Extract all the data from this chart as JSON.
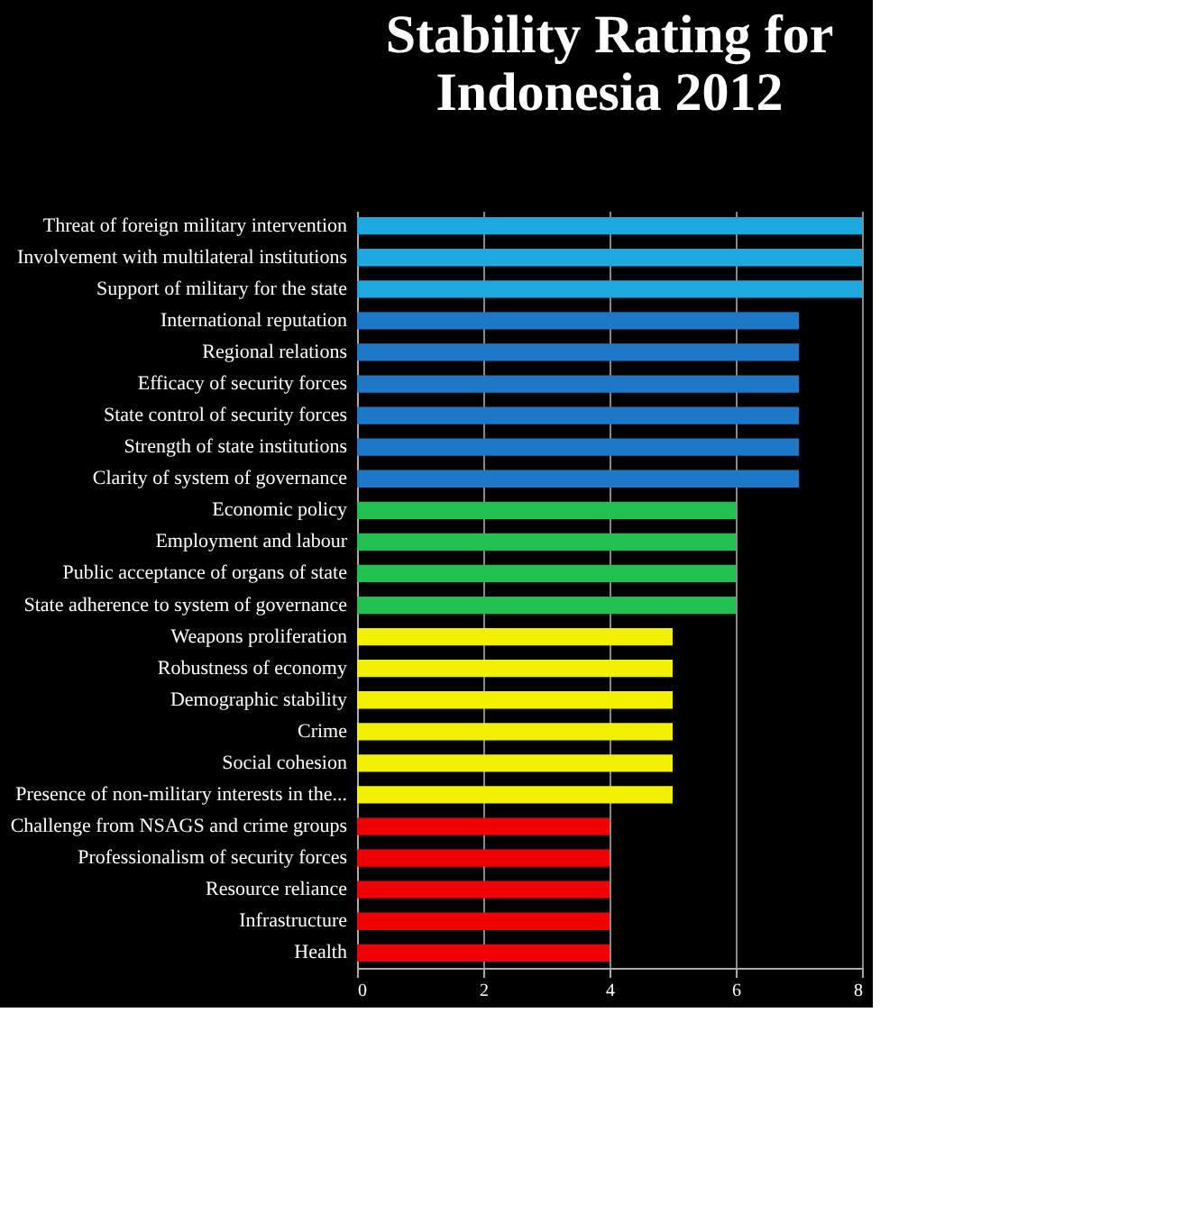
{
  "chart_data": {
    "type": "bar",
    "orientation": "horizontal",
    "title": "Stability Rating for Indonesia 2012",
    "categories": [
      "Threat of foreign military intervention",
      "Involvement with multilateral institutions",
      "Support of military for the state",
      "International reputation",
      "Regional relations",
      "Efficacy of security forces",
      "State control of security forces",
      "Strength of state institutions",
      "Clarity of system of governance",
      "Economic policy",
      "Employment and labour",
      "Public acceptance of organs of state",
      "State adherence to system of governance",
      "Weapons proliferation",
      "Robustness of economy",
      "Demographic stability",
      "Crime",
      "Social cohesion",
      "Presence of non-military interests in the...",
      "Challenge from NSAGS and crime groups",
      "Professionalism of security forces",
      "Resource reliance",
      "Infrastructure",
      "Health"
    ],
    "values": [
      8,
      8,
      8,
      7,
      7,
      7,
      7,
      7,
      7,
      6,
      6,
      6,
      6,
      5,
      5,
      5,
      5,
      5,
      5,
      4,
      4,
      4,
      4,
      4
    ],
    "colors": [
      "#1ea8e0",
      "#1ea8e0",
      "#1ea8e0",
      "#1e78c8",
      "#1e78c8",
      "#1e78c8",
      "#1e78c8",
      "#1e78c8",
      "#1e78c8",
      "#22c050",
      "#22c050",
      "#22c050",
      "#22c050",
      "#f0f000",
      "#f0f000",
      "#f0f000",
      "#f0f000",
      "#f0f000",
      "#f0f000",
      "#f00000",
      "#f00000",
      "#f00000",
      "#f00000",
      "#f00000"
    ],
    "xlim": [
      0,
      8
    ],
    "xticks": [
      0,
      2,
      4,
      6,
      8
    ],
    "grid": "x"
  }
}
